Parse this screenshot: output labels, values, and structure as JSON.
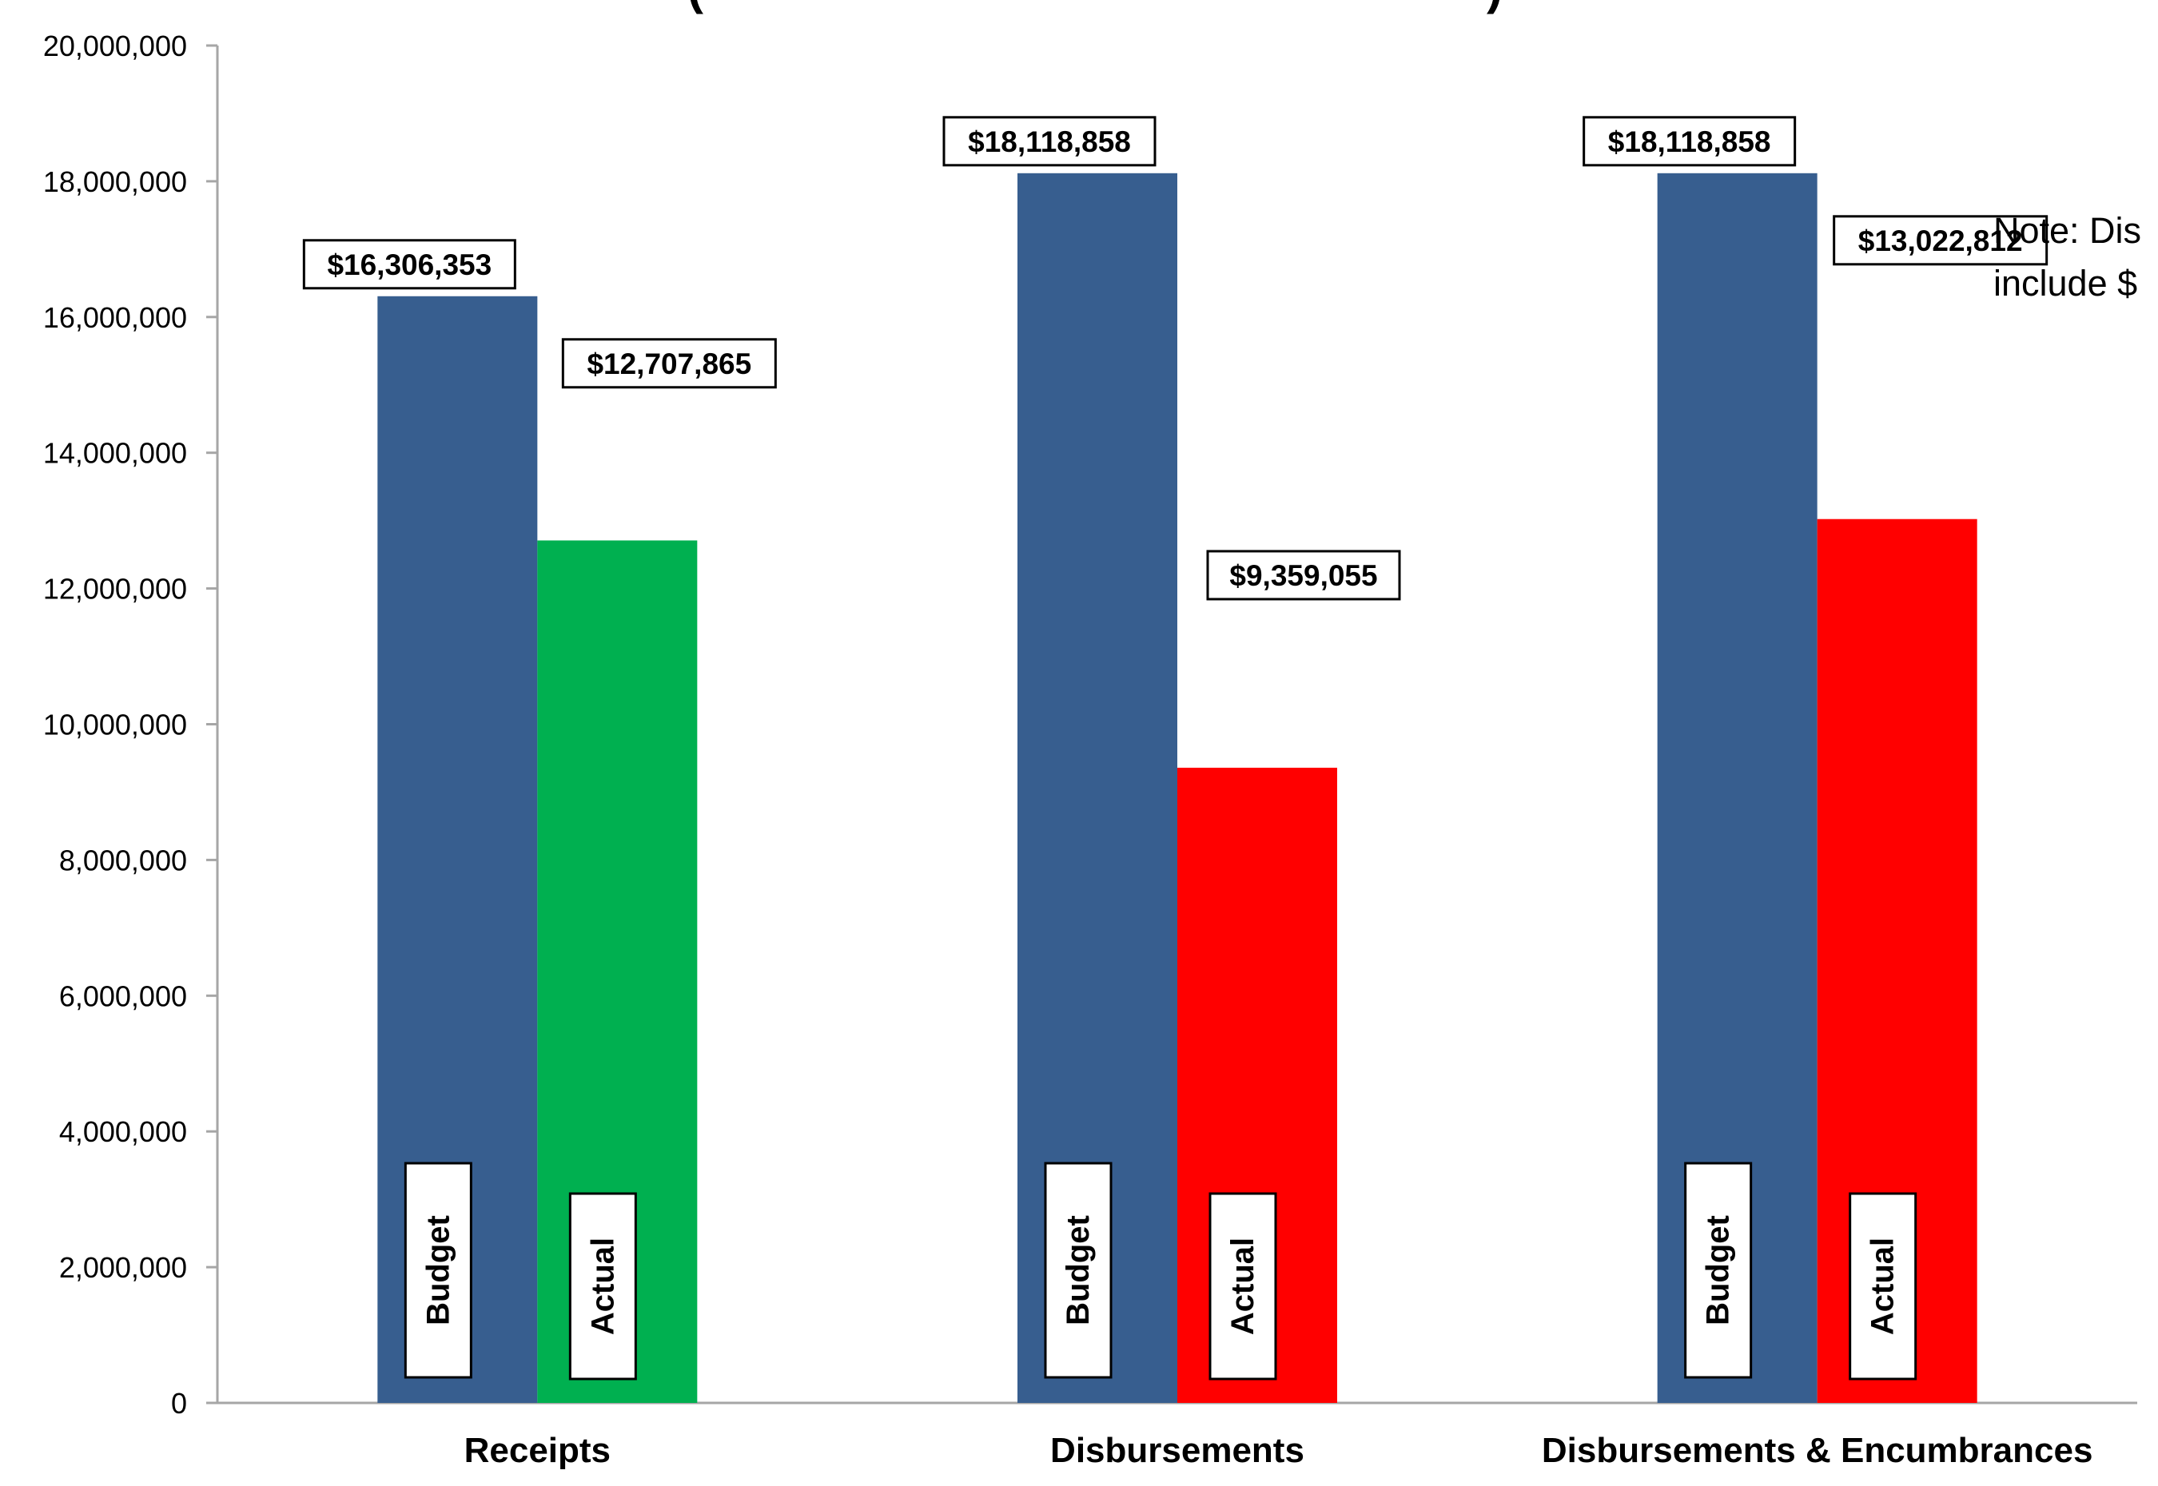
{
  "chart_data": {
    "type": "bar",
    "title": "(",
    "title_end": ")",
    "categories": [
      "Receipts",
      "Disbursements",
      "Disbursements & Encumbrances"
    ],
    "series": [
      {
        "name": "Budget",
        "values": [
          16306353,
          18118858,
          18118858
        ]
      },
      {
        "name": "Actual",
        "values": [
          12707865,
          9359055,
          13022812
        ]
      }
    ],
    "series_labels": [
      [
        "Budget",
        "Budget",
        "Budget"
      ],
      [
        "Actual",
        "Actual",
        "Actual"
      ]
    ],
    "data_labels": [
      [
        "$16,306,353",
        "$18,118,858",
        "$18,118,858"
      ],
      [
        "$12,707,865",
        "$9,359,055",
        "$13,022,812"
      ]
    ],
    "ylim": [
      0,
      20000000
    ],
    "y_ticks": [
      "0",
      "2,000,000",
      "4,000,000",
      "6,000,000",
      "8,000,000",
      "10,000,000",
      "12,000,000",
      "14,000,000",
      "16,000,000",
      "18,000,000",
      "20,000,000"
    ],
    "xlabel": "",
    "ylabel": "",
    "grid": false,
    "legend": "none",
    "colors": {
      "budget": "#375e8f",
      "actual": [
        "#00b050",
        "#ff0000",
        "#ff0000"
      ],
      "axis": "#a6a6a6"
    },
    "note": [
      "Note:  Dis",
      "include $"
    ]
  }
}
